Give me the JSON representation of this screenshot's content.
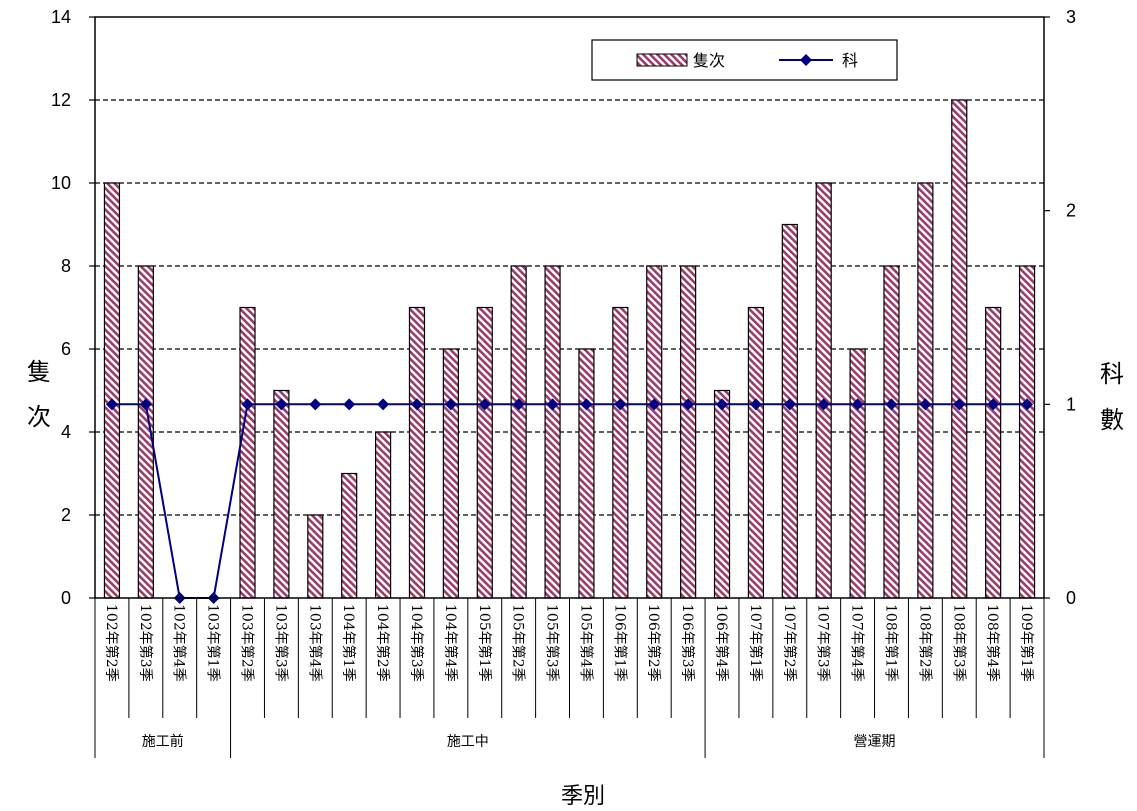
{
  "chart_data": {
    "type": "bar",
    "categories": [
      "102年第2季",
      "102年第3季",
      "102年第4季",
      "103年第1季",
      "103年第2季",
      "103年第3季",
      "103年第4季",
      "104年第1季",
      "104年第2季",
      "104年第3季",
      "104年第4季",
      "105年第1季",
      "105年第2季",
      "105年第3季",
      "105年第4季",
      "106年第1季",
      "106年第2季",
      "106年第3季",
      "106年第4季",
      "107年第1季",
      "107年第2季",
      "107年第3季",
      "107年第4季",
      "108年第1季",
      "108年第2季",
      "108年第3季",
      "108年第4季",
      "109年第1季"
    ],
    "series": [
      {
        "name": "隻次",
        "type": "bar",
        "axis": "left",
        "color": "#9B3B6A",
        "values": [
          10,
          8,
          0,
          0,
          7,
          5,
          2,
          3,
          4,
          7,
          6,
          7,
          8,
          8,
          6,
          7,
          8,
          8,
          5,
          7,
          9,
          10,
          6,
          8,
          10,
          12,
          7,
          8
        ]
      },
      {
        "name": "科",
        "type": "line",
        "axis": "right",
        "color": "#000080",
        "marker": "diamond",
        "values": [
          1,
          1,
          0,
          0,
          1,
          1,
          1,
          1,
          1,
          1,
          1,
          1,
          1,
          1,
          1,
          1,
          1,
          1,
          1,
          1,
          1,
          1,
          1,
          1,
          1,
          1,
          1,
          1
        ]
      }
    ],
    "groups": [
      {
        "label": "施工前",
        "start": 0,
        "end": 3
      },
      {
        "label": "施工中",
        "start": 4,
        "end": 17
      },
      {
        "label": "營運期",
        "start": 18,
        "end": 27
      }
    ],
    "ylabel_left": "隻次",
    "ylabel_right": "科數",
    "xlabel": "季別",
    "ylim_left": [
      0,
      14
    ],
    "yticks_left": [
      0,
      2,
      4,
      6,
      8,
      10,
      12,
      14
    ],
    "ylim_right": [
      0,
      3
    ],
    "yticks_right": [
      0,
      1,
      2,
      3
    ],
    "grid": "horizontal-dashed",
    "legend_position": "top-right"
  }
}
